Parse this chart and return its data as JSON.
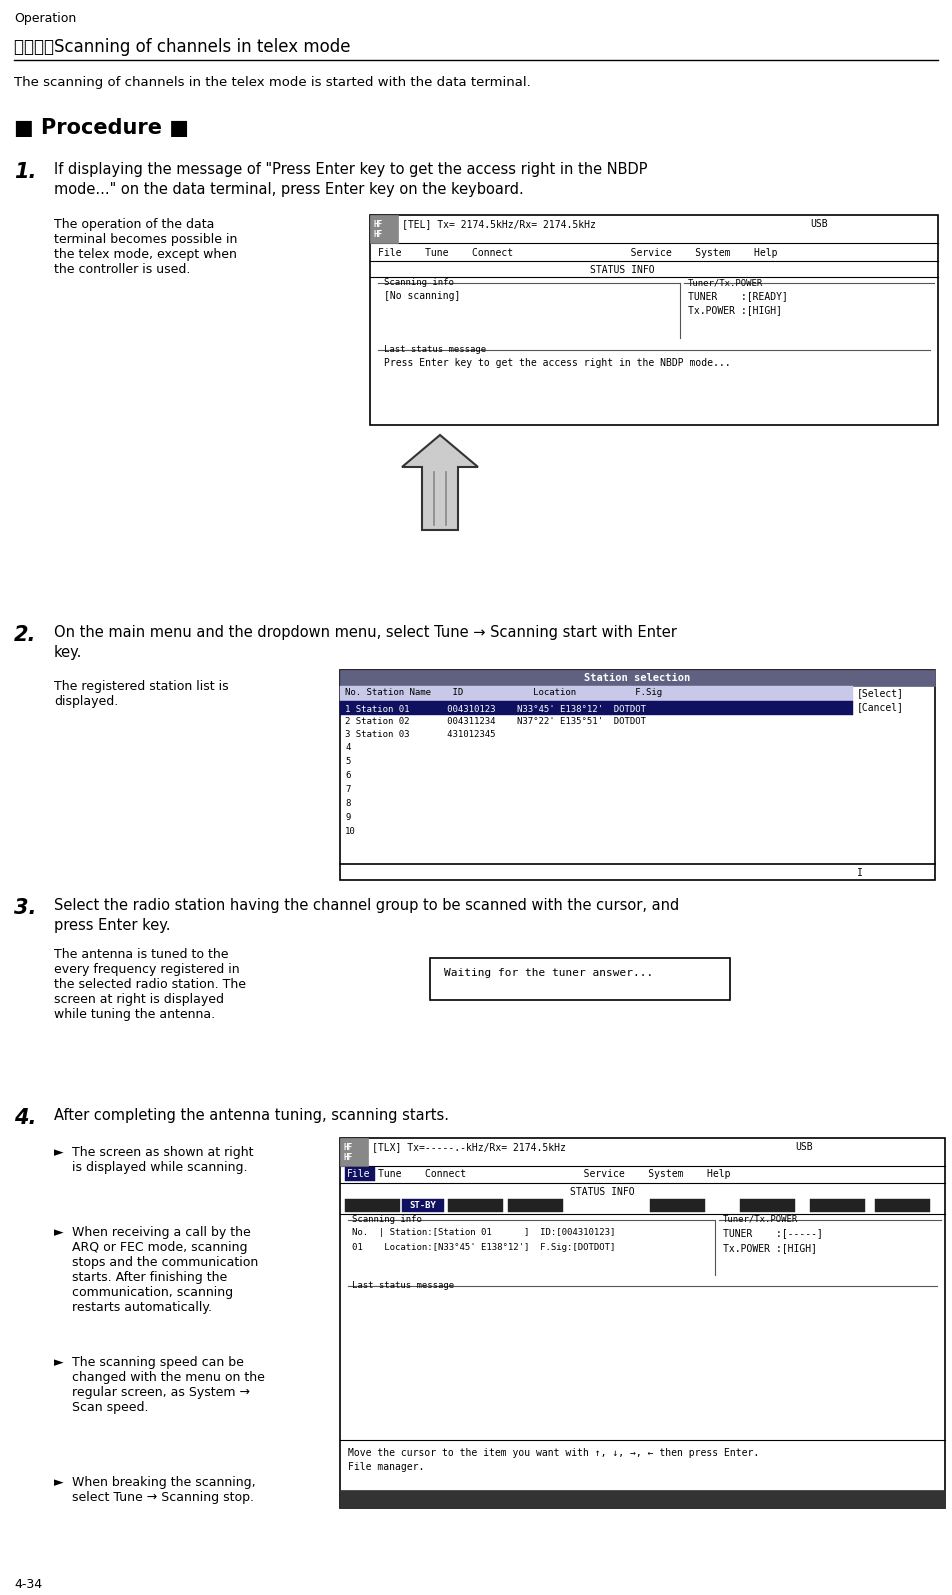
{
  "page_label": "Operation",
  "section_title": "（２）　Scanning of channels in telex mode",
  "intro_text": "The scanning of channels in the telex mode is started with the data terminal.",
  "procedure_label": "■ Procedure ■",
  "step1_text_line1": "If displaying the message of \"Press Enter key to get the access right in the NBDP",
  "step1_text_line2": "mode...\" on the data terminal, press Enter key on the keyboard.",
  "step1_note": "The operation of the data\nterminal becomes possible in\nthe telex mode, except when\nthe controller is used.",
  "step1_sc_title": "[TEL] Tx= 2174.5kHz/Rx= 2174.5kHz",
  "step1_sc_usb": "USB",
  "step1_sc_menu": "File    Tune    Connect                    Service    System    Help",
  "step1_sc_status": "STATUS INFO",
  "step1_sc_scan_label": "Scanning info",
  "step1_sc_scan_val": "[No scanning]",
  "step1_sc_tuner_label": "Tuner/Tx.POWER",
  "step1_sc_tuner1": "TUNER    :[READY]",
  "step1_sc_tuner2": "Tx.POWER :[HIGH]",
  "step1_sc_last_label": "Last status message",
  "step1_sc_last_val": "Press Enter key to get the access right in the NBDP mode...",
  "step2_text_line1": "On the main menu and the dropdown menu, select Tune → Scanning start with Enter",
  "step2_text_line2": "key.",
  "step2_note": "The registered station list is\ndisplayed.",
  "step2_sc_title": "Station selection",
  "step2_sc_hdr": "No. Station Name    ID             Location           F.Sig",
  "step2_sc_r1": "1 Station 01       004310123    N33°45' E138°12'  DOTDOT",
  "step2_sc_r2": "2 Station 02       004311234    N37°22' E135°51'  DOTDOT",
  "step2_sc_r3": "3 Station 03       431012345",
  "step2_sc_btns": [
    "[Select]",
    "[Cancel]"
  ],
  "step3_text_line1": "Select the radio station having the channel group to be scanned with the cursor, and",
  "step3_text_line2": "press Enter key.",
  "step3_note": "The antenna is tuned to the\nevery frequency registered in\nthe selected radio station. The\nscreen at right is displayed\nwhile tuning the antenna.",
  "step3_sc_text": "Waiting for the tuner answer...",
  "step4_text": "After completing the antenna tuning, scanning starts.",
  "step4_bullets": [
    "The screen as shown at right\nis displayed while scanning.",
    "When receiving a call by the\nARQ or FEC mode, scanning\nstops and the communication\nstarts. After finishing the\ncommunication, scanning\nrestarts automatically.",
    "The scanning speed can be\nchanged with the menu on the\nregular screen, as System →\nScan speed.",
    "When breaking the scanning,\nselect Tune → Scanning stop."
  ],
  "step4_sc_title": "[TLX] Tx=-----.-kHz/Rx= 2174.5kHz",
  "step4_sc_usb": "USB",
  "step4_sc_menu": "Tune    Connect                    Service    System    Help",
  "step4_sc_status": "STATUS INFO",
  "step4_sc_stby": "ST-BY",
  "step4_sc_scan_label": "Scanning info",
  "step4_sc_tuner_label": "Tuner/Tx.POWER",
  "step4_sc_row1a": "No.  | Station:[Station 01      ]  ID:[004310123]",
  "step4_sc_tuner1": "TUNER    :[-----]",
  "step4_sc_row2a": "01    Location:[N33°45' E138°12']  F.Sig:[DOTDOT]",
  "step4_sc_tuner2": "Tx.POWER :[HIGH]",
  "step4_sc_last_label": "Last status message",
  "step4_sc_bot1": "Move the cursor to the item you want with ↑, ↓, →, ← then press Enter.",
  "step4_sc_bot2": "File manager.",
  "page_number": "4-34"
}
